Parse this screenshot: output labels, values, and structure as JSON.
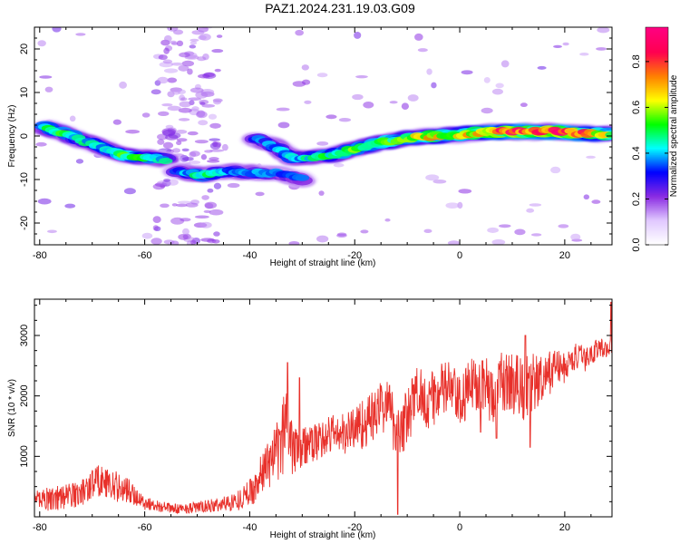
{
  "title": "PAZ1.2024.231.19.03.G09",
  "chart_data": [
    {
      "type": "heatmap",
      "xlabel": "Height of straight line (km)",
      "ylabel": "Frequency (Hz)",
      "xlim": [
        -81,
        29
      ],
      "ylim": [
        -25,
        25
      ],
      "xticks": [
        -80,
        -60,
        -40,
        -20,
        0,
        20
      ],
      "yticks": [
        -20,
        -10,
        0,
        10,
        20
      ],
      "colorbar": {
        "label": "Normalized spectral amplitude",
        "range": [
          0,
          0.95
        ],
        "ticks": [
          "0.0",
          "0.2",
          "0.4",
          "0.6",
          "0.8"
        ],
        "colors": [
          "#ffffff",
          "#e0c8ff",
          "#8a2be2",
          "#0000ff",
          "#00ffff",
          "#00ff00",
          "#ffff00",
          "#ff8000",
          "#ff0050",
          "#ff0080"
        ]
      },
      "ridges": [
        {
          "x": [
            -79,
            -75,
            -72,
            -68,
            -64,
            -59,
            -56
          ],
          "y": [
            2,
            0.5,
            -1,
            -2.5,
            -4.5,
            -5,
            -5.5
          ],
          "amplitude": [
            0.55,
            0.5,
            0.45,
            0.45,
            0.55,
            0.5,
            0.45
          ]
        },
        {
          "x": [
            -54,
            -49,
            -44,
            -39,
            -35,
            -30
          ],
          "y": [
            -8,
            -9,
            -8,
            -8.5,
            -8.5,
            -10
          ],
          "amplitude": [
            0.35,
            0.5,
            0.4,
            0.4,
            0.35,
            0.35
          ]
        },
        {
          "x": [
            -39,
            -35,
            -32,
            -29,
            -25,
            -20,
            -15,
            -10,
            -5,
            0,
            5,
            10,
            15,
            20,
            25,
            29
          ],
          "y": [
            -0.5,
            -2.5,
            -5,
            -5,
            -4.5,
            -3,
            -1.5,
            -0.5,
            0,
            0.3,
            1,
            1,
            1,
            1,
            0.5,
            0.5
          ],
          "amplitude": [
            0.35,
            0.4,
            0.45,
            0.45,
            0.5,
            0.55,
            0.55,
            0.6,
            0.7,
            0.65,
            0.75,
            0.9,
            0.8,
            0.92,
            0.75,
            0.6
          ]
        }
      ]
    },
    {
      "type": "line",
      "xlabel": "Height of straight line (km)",
      "ylabel": "SNR (10 * v/v)",
      "xlim": [
        -81,
        29
      ],
      "ylim": [
        0,
        3600
      ],
      "xticks": [
        -80,
        -60,
        -40,
        -20,
        0,
        20
      ],
      "yticks": [
        1000,
        2000,
        3000
      ],
      "color": "#e8302a",
      "envelope": {
        "x": [
          -81,
          -76,
          -72,
          -69,
          -66,
          -63,
          -60,
          -57,
          -54,
          -51,
          -48,
          -45,
          -42,
          -39,
          -37,
          -35,
          -34,
          -33,
          -32,
          -31,
          -30,
          -28,
          -26,
          -24,
          -22,
          -20,
          -18,
          -16,
          -14,
          -12,
          -10,
          -8,
          -6,
          -4,
          -2,
          0,
          2,
          4,
          6,
          8,
          10,
          12,
          14,
          16,
          18,
          20,
          22,
          24,
          26,
          29
        ],
        "y": [
          300,
          320,
          400,
          620,
          520,
          420,
          230,
          170,
          130,
          150,
          170,
          210,
          280,
          480,
          850,
          1000,
          1200,
          1600,
          1300,
          1200,
          1150,
          1200,
          1300,
          1400,
          1350,
          1500,
          1550,
          1700,
          1900,
          1450,
          1600,
          2100,
          1900,
          2050,
          2150,
          1850,
          2150,
          2300,
          2000,
          2250,
          2200,
          2150,
          2250,
          2200,
          2500,
          2450,
          2650,
          2600,
          2780,
          2800
        ],
        "noise": [
          200,
          220,
          230,
          280,
          260,
          220,
          120,
          90,
          80,
          90,
          110,
          130,
          170,
          250,
          380,
          500,
          620,
          700,
          600,
          500,
          420,
          300,
          330,
          350,
          350,
          400,
          420,
          450,
          480,
          500,
          520,
          500,
          450,
          480,
          500,
          450,
          480,
          520,
          500,
          480,
          520,
          600,
          500,
          450,
          300,
          260,
          230,
          200,
          180,
          150
        ]
      },
      "spikes": [
        {
          "x": -32.8,
          "y": 2550
        },
        {
          "x": -30.5,
          "y": 2300
        },
        {
          "x": -11.8,
          "y": 40
        },
        {
          "x": 12.5,
          "y": 3000
        },
        {
          "x": 13.4,
          "y": 1150
        },
        {
          "x": 28.8,
          "y": 3550
        },
        {
          "x": 4.0,
          "y": 1400
        },
        {
          "x": 7.0,
          "y": 1300
        }
      ]
    }
  ]
}
